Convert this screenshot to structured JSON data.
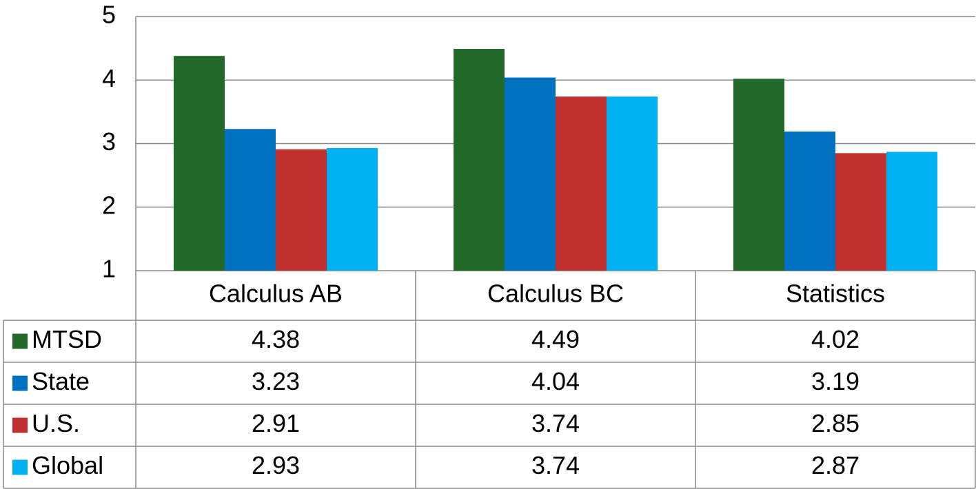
{
  "chart_data": {
    "type": "bar",
    "categories": [
      "Calculus AB",
      "Calculus BC",
      "Statistics"
    ],
    "series": [
      {
        "name": "MTSD",
        "color": "#216829",
        "values": [
          4.38,
          4.49,
          4.02
        ]
      },
      {
        "name": "State",
        "color": "#0070c0",
        "values": [
          3.23,
          4.04,
          3.19
        ]
      },
      {
        "name": "U.S.",
        "color": "#c0302f",
        "values": [
          2.91,
          3.74,
          2.85
        ]
      },
      {
        "name": "Global",
        "color": "#00b0f0",
        "values": [
          2.93,
          3.74,
          2.87
        ]
      }
    ],
    "ylim": [
      1,
      5
    ],
    "yticks": [
      1,
      2,
      3,
      4,
      5
    ],
    "grid": true
  }
}
